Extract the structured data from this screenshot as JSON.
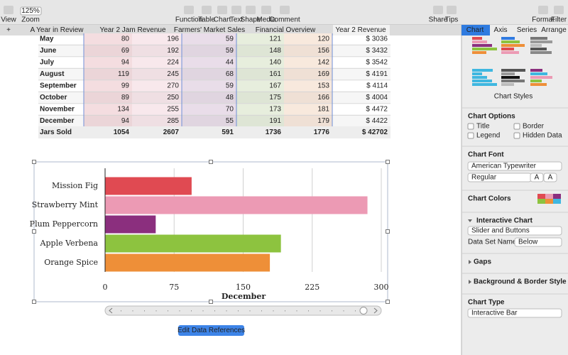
{
  "toolbar": {
    "left": [
      "View",
      "Zoom"
    ],
    "zoom": "125%",
    "tools": [
      "Function",
      "Table",
      "Chart",
      "Text",
      "Shape",
      "Media",
      "Comment"
    ],
    "right": [
      "Share",
      "Tips",
      "Format",
      "Filter"
    ]
  },
  "tabs": {
    "add": "+",
    "sheets": [
      "A Year in Review",
      "Year 2 Jam Revenue",
      "Farmers' Market Sales",
      "Financial Overview",
      "Year 2 Revenue"
    ],
    "sidebar": [
      "Chart",
      "Axis",
      "Series",
      "Arrange"
    ]
  },
  "table": {
    "rows": [
      [
        "May",
        "80",
        "196",
        "59",
        "121",
        "120",
        "$ 3036"
      ],
      [
        "June",
        "69",
        "192",
        "59",
        "148",
        "156",
        "$ 3432"
      ],
      [
        "July",
        "94",
        "224",
        "44",
        "140",
        "142",
        "$ 3542"
      ],
      [
        "August",
        "119",
        "245",
        "68",
        "161",
        "169",
        "$ 4191"
      ],
      [
        "September",
        "99",
        "270",
        "59",
        "167",
        "153",
        "$ 4114"
      ],
      [
        "October",
        "89",
        "250",
        "48",
        "175",
        "166",
        "$ 4004"
      ],
      [
        "November",
        "134",
        "255",
        "70",
        "173",
        "181",
        "$ 4472"
      ],
      [
        "December",
        "94",
        "285",
        "55",
        "191",
        "179",
        "$ 4422"
      ]
    ],
    "footer": [
      "Jars Sold",
      "1054",
      "2607",
      "591",
      "1736",
      "1776",
      "$ 42702"
    ]
  },
  "chart_data": {
    "type": "bar",
    "orientation": "horizontal",
    "categories": [
      "Mission Fig",
      "Strawberry Mint",
      "Plum Peppercorn",
      "Apple Verbena",
      "Orange Spice"
    ],
    "series": [
      {
        "name": "December",
        "values": [
          94,
          285,
          55,
          191,
          179
        ],
        "colors": [
          "#e04a52",
          "#ec9ab4",
          "#8b2f7e",
          "#8dc33f",
          "#ee8f38"
        ]
      }
    ],
    "xlim": [
      0,
      300
    ],
    "xticks": [
      0,
      75,
      150,
      225,
      300
    ],
    "grid": true
  },
  "button": "Edit Data References",
  "sidebar": {
    "chart_styles": "Chart Styles",
    "chart_options": "Chart Options",
    "checkboxes": [
      "Title",
      "Border",
      "Legend",
      "Hidden Data"
    ],
    "chart_font": "Chart Font",
    "font": "American Typewriter",
    "font_style": "Regular",
    "font_size_buttons": [
      "A",
      "A"
    ],
    "chart_colors": "Chart Colors",
    "interactive_chart": "Interactive Chart",
    "interactive_mode": "Slider and Buttons",
    "data_set_name_label": "Data Set Name:",
    "data_set_name": "Below",
    "gaps": "Gaps",
    "background": "Background & Border Style",
    "chart_type": "Chart Type",
    "chart_type_value": "Interactive Bar"
  }
}
